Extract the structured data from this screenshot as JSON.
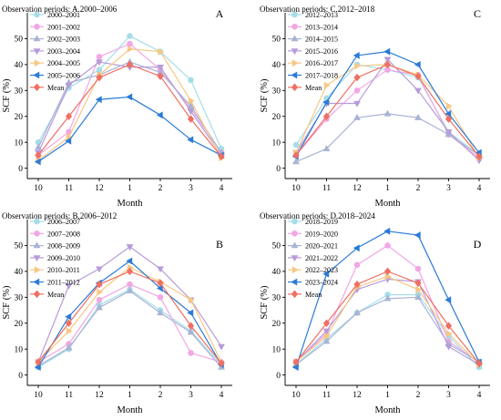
{
  "chart_data": [
    {
      "type": "line",
      "panel_label": "A",
      "title": "Observation periods: A.2000–2006",
      "xlabel": "Month",
      "ylabel": "SCF (%)",
      "categories": [
        "10",
        "11",
        "12",
        "1",
        "2",
        "3",
        "4"
      ],
      "yticks": [
        0,
        10,
        20,
        30,
        40,
        50
      ],
      "ylim": [
        -4,
        60
      ],
      "grid": false,
      "legend": "top-left",
      "series": [
        {
          "name": "2000–2001",
          "color": "#a6dde9",
          "marker": "circle",
          "values": [
            10,
            31,
            38,
            51,
            45,
            34,
            7.5
          ]
        },
        {
          "name": "2001–2002",
          "color": "#f1a7e4",
          "marker": "circle",
          "values": [
            5,
            14,
            43,
            48,
            38,
            23,
            6
          ]
        },
        {
          "name": "2002–2003",
          "color": "#a9b4d4",
          "marker": "triangle-up",
          "values": [
            8,
            33,
            36,
            41,
            37,
            24,
            6
          ]
        },
        {
          "name": "2003–2004",
          "color": "#b79cd9",
          "marker": "triangle-down",
          "values": [
            6,
            32,
            41,
            39,
            39,
            22,
            5
          ]
        },
        {
          "name": "2004–2005",
          "color": "#f7c884",
          "marker": "triangle-right",
          "values": [
            3,
            12,
            36,
            46,
            45,
            26,
            4
          ]
        },
        {
          "name": "2005–2006",
          "color": "#2b7bd6",
          "marker": "triangle-left",
          "values": [
            2.5,
            10.5,
            26.5,
            27.5,
            20.5,
            11,
            5
          ]
        },
        {
          "name": "Mean",
          "color": "#ef6f62",
          "marker": "diamond",
          "values": [
            5,
            20,
            35,
            40,
            35.5,
            19,
            4.5
          ]
        }
      ]
    },
    {
      "type": "line",
      "panel_label": "B",
      "title": "Observation periods: B.2006–2012",
      "xlabel": "Month",
      "ylabel": "SCF (%)",
      "categories": [
        "10",
        "11",
        "12",
        "1",
        "2",
        "3",
        "4"
      ],
      "yticks": [
        0,
        10,
        20,
        30,
        40,
        50
      ],
      "ylim": [
        -4,
        60
      ],
      "grid": false,
      "legend": "top-left",
      "series": [
        {
          "name": "2006–2007",
          "color": "#a6dde9",
          "marker": "circle",
          "values": [
            3,
            10,
            27,
            33,
            25,
            17,
            4
          ]
        },
        {
          "name": "2007–2008",
          "color": "#f1a7e4",
          "marker": "circle",
          "values": [
            5,
            12,
            29,
            35,
            30,
            8.5,
            5
          ]
        },
        {
          "name": "2008–2009",
          "color": "#a9b4d4",
          "marker": "triangle-up",
          "values": [
            3.5,
            10.5,
            26,
            32.5,
            24,
            16.5,
            3
          ]
        },
        {
          "name": "2009–2010",
          "color": "#b79cd9",
          "marker": "triangle-down",
          "values": [
            5,
            34.5,
            41,
            49.5,
            41,
            29,
            11
          ]
        },
        {
          "name": "2010–2011",
          "color": "#f7c884",
          "marker": "triangle-right",
          "values": [
            5,
            17,
            32,
            41.5,
            36,
            29,
            5
          ]
        },
        {
          "name": "2011–2012",
          "color": "#2b7bd6",
          "marker": "triangle-left",
          "values": [
            3,
            22.5,
            35.5,
            44,
            33.5,
            24,
            4
          ]
        },
        {
          "name": "Mean",
          "color": "#ef6f62",
          "marker": "diamond",
          "values": [
            5,
            20,
            35,
            40,
            35.5,
            19,
            4.5
          ]
        }
      ]
    },
    {
      "type": "line",
      "panel_label": "C",
      "title": "Observation periods: C.2012–2018",
      "xlabel": "Month",
      "ylabel": "SCF (%)",
      "categories": [
        "10",
        "11",
        "12",
        "1",
        "2",
        "3",
        "4"
      ],
      "yticks": [
        0,
        10,
        20,
        30,
        40,
        50
      ],
      "ylim": [
        -4,
        60
      ],
      "grid": false,
      "legend": "top-left",
      "series": [
        {
          "name": "2012–2013",
          "color": "#a6dde9",
          "marker": "circle",
          "values": [
            9,
            27,
            40,
            38,
            35,
            14,
            5
          ]
        },
        {
          "name": "2013–2014",
          "color": "#f1a7e4",
          "marker": "circle",
          "values": [
            5,
            19,
            30,
            38,
            36,
            13,
            4
          ]
        },
        {
          "name": "2014–2015",
          "color": "#a9b4d4",
          "marker": "triangle-up",
          "values": [
            2.5,
            7.5,
            19.5,
            21,
            19.5,
            13,
            5
          ]
        },
        {
          "name": "2015–2016",
          "color": "#b79cd9",
          "marker": "triangle-down",
          "values": [
            6,
            25,
            25,
            42,
            30,
            14,
            3
          ]
        },
        {
          "name": "2016–2017",
          "color": "#f7c884",
          "marker": "triangle-right",
          "values": [
            6,
            32,
            39.5,
            40,
            36,
            24,
            4
          ]
        },
        {
          "name": "2017–2018",
          "color": "#2b7bd6",
          "marker": "triangle-left",
          "values": [
            4.5,
            25.5,
            43.5,
            45,
            40,
            21,
            6
          ]
        },
        {
          "name": "Mean",
          "color": "#ef6f62",
          "marker": "diamond",
          "values": [
            5,
            20,
            35,
            40,
            35.5,
            19,
            4.5
          ]
        }
      ]
    },
    {
      "type": "line",
      "panel_label": "D",
      "title": "Observation periods: D.2018–2024",
      "xlabel": "Month",
      "ylabel": "SCF (%)",
      "categories": [
        "10",
        "11",
        "12",
        "1",
        "2",
        "3",
        "4"
      ],
      "yticks": [
        0,
        10,
        20,
        30,
        40,
        50
      ],
      "ylim": [
        -4,
        60
      ],
      "grid": false,
      "legend": "top-left",
      "series": [
        {
          "name": "2018–2019",
          "color": "#a6dde9",
          "marker": "circle",
          "values": [
            4,
            14,
            24,
            31,
            31,
            15,
            3
          ]
        },
        {
          "name": "2019–2020",
          "color": "#f1a7e4",
          "marker": "circle",
          "values": [
            5,
            16,
            42.5,
            50,
            41,
            13,
            5
          ]
        },
        {
          "name": "2020–2021",
          "color": "#a9b4d4",
          "marker": "triangle-up",
          "values": [
            4,
            13,
            24,
            29.5,
            30,
            12,
            5
          ]
        },
        {
          "name": "2021–2022",
          "color": "#b79cd9",
          "marker": "triangle-down",
          "values": [
            5,
            17,
            33,
            37,
            36,
            11,
            4
          ]
        },
        {
          "name": "2022–2023",
          "color": "#f7c884",
          "marker": "triangle-right",
          "values": [
            5,
            15,
            34,
            38,
            33,
            16,
            4
          ]
        },
        {
          "name": "2023–2024",
          "color": "#2b7bd6",
          "marker": "triangle-left",
          "values": [
            3,
            39,
            49,
            55.5,
            54,
            29,
            5
          ]
        },
        {
          "name": "Mean",
          "color": "#ef6f62",
          "marker": "diamond",
          "values": [
            5,
            20,
            35,
            40,
            35.5,
            19,
            4.5
          ]
        }
      ]
    }
  ]
}
